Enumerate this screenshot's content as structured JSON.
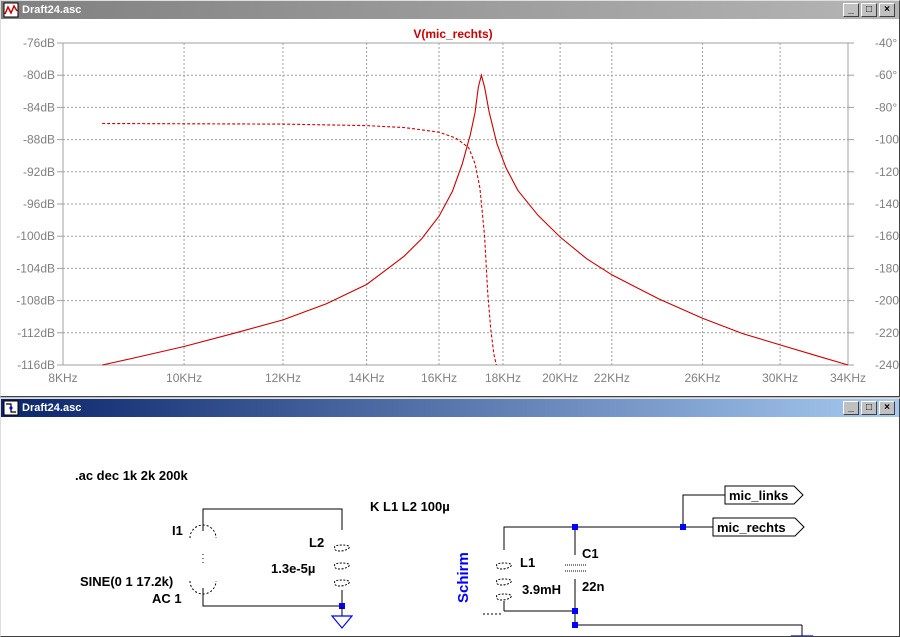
{
  "plot_window": {
    "title": "Draft24.asc",
    "trace_title": "V(mic_rechts)",
    "buttons": {
      "minimize": "_",
      "maximize": "□",
      "close": "×"
    }
  },
  "chart_data": {
    "type": "line",
    "title": "V(mic_rechts)",
    "x_scale": "log",
    "xlim": [
      8000,
      34000
    ],
    "x_ticks": [
      {
        "value": 8000,
        "label": "8KHz"
      },
      {
        "value": 10000,
        "label": "10KHz"
      },
      {
        "value": 12000,
        "label": "12KHz"
      },
      {
        "value": 14000,
        "label": "14KHz"
      },
      {
        "value": 16000,
        "label": "16KHz"
      },
      {
        "value": 18000,
        "label": "18KHz"
      },
      {
        "value": 20000,
        "label": "20KHz"
      },
      {
        "value": 22000,
        "label": "22KHz"
      },
      {
        "value": 26000,
        "label": "26KHz"
      },
      {
        "value": 30000,
        "label": "30KHz"
      },
      {
        "value": 34000,
        "label": "34KHz"
      }
    ],
    "left_axis": {
      "unit": "dB",
      "ylim": [
        -116,
        -76
      ],
      "ticks": [
        {
          "value": -76,
          "label": "-76dB"
        },
        {
          "value": -80,
          "label": "-80dB"
        },
        {
          "value": -84,
          "label": "-84dB"
        },
        {
          "value": -88,
          "label": "-88dB"
        },
        {
          "value": -92,
          "label": "-92dB"
        },
        {
          "value": -96,
          "label": "-96dB"
        },
        {
          "value": -100,
          "label": "-100dB"
        },
        {
          "value": -104,
          "label": "-104dB"
        },
        {
          "value": -108,
          "label": "-108dB"
        },
        {
          "value": -112,
          "label": "-112dB"
        },
        {
          "value": -116,
          "label": "-116dB"
        }
      ]
    },
    "right_axis": {
      "unit": "°",
      "ylim": [
        -240,
        -40
      ],
      "ticks": [
        {
          "value": -40,
          "label": "-40°"
        },
        {
          "value": -60,
          "label": "-60°"
        },
        {
          "value": -80,
          "label": "-80°"
        },
        {
          "value": -100,
          "label": "-100°"
        },
        {
          "value": -120,
          "label": "-120°"
        },
        {
          "value": -140,
          "label": "-140°"
        },
        {
          "value": -160,
          "label": "-160°"
        },
        {
          "value": -180,
          "label": "-180°"
        },
        {
          "value": -200,
          "label": "-200°"
        },
        {
          "value": -220,
          "label": "-220°"
        },
        {
          "value": -240,
          "label": "-240°"
        }
      ]
    },
    "grid": true,
    "series": [
      {
        "kind": "magnitude",
        "axis": "left",
        "style": "solid",
        "color": "#cc0000",
        "points": [
          [
            8600,
            -116
          ],
          [
            9200,
            -115.0
          ],
          [
            10000,
            -113.7
          ],
          [
            11000,
            -112.0
          ],
          [
            12000,
            -110.4
          ],
          [
            13000,
            -108.4
          ],
          [
            14000,
            -106.0
          ],
          [
            15000,
            -102.5
          ],
          [
            15500,
            -100.3
          ],
          [
            16000,
            -97.5
          ],
          [
            16400,
            -94.4
          ],
          [
            16700,
            -91.0
          ],
          [
            16950,
            -87.4
          ],
          [
            17100,
            -84.6
          ],
          [
            17200,
            -81.5
          ],
          [
            17300,
            -80.0
          ],
          [
            17400,
            -81.5
          ],
          [
            17550,
            -84.6
          ],
          [
            17800,
            -88.5
          ],
          [
            18100,
            -91.5
          ],
          [
            18500,
            -94.3
          ],
          [
            19200,
            -97.4
          ],
          [
            20000,
            -100.1
          ],
          [
            21000,
            -102.8
          ],
          [
            22000,
            -104.8
          ],
          [
            24000,
            -107.8
          ],
          [
            26000,
            -110.2
          ],
          [
            28000,
            -112.1
          ],
          [
            30000,
            -113.5
          ],
          [
            32000,
            -114.8
          ],
          [
            34000,
            -116.0
          ]
        ]
      },
      {
        "kind": "phase",
        "axis": "right",
        "style": "dashed",
        "color": "#cc0000",
        "points": [
          [
            8600,
            -90.0
          ],
          [
            12000,
            -90.4
          ],
          [
            14000,
            -91.3
          ],
          [
            15000,
            -92.5
          ],
          [
            16000,
            -95.4
          ],
          [
            16500,
            -99.0
          ],
          [
            16900,
            -105.0
          ],
          [
            17100,
            -115.0
          ],
          [
            17250,
            -130.0
          ],
          [
            17400,
            -160.0
          ],
          [
            17500,
            -195.0
          ],
          [
            17600,
            -218.0
          ],
          [
            17700,
            -233.0
          ],
          [
            17780,
            -240.0
          ]
        ]
      }
    ]
  },
  "schematic_window": {
    "title": "Draft24.asc",
    "buttons": {
      "minimize": "_",
      "maximize": "□",
      "close": "×"
    },
    "directive_ac": ".ac dec 1k 2k 200k",
    "directive_k": "K L1 L2 100µ",
    "source_name": "I1",
    "source_value": "SINE(0 1 17.2k)",
    "source_ac": "AC 1",
    "l2_name": "L2",
    "l2_value": "1.3e-5µ",
    "l1_name": "L1",
    "l1_value": "3.9mH",
    "c1_name": "C1",
    "c1_value": "22n",
    "net_schirm": "Schirm",
    "port_links": "mic_links",
    "port_rechts": "mic_rechts",
    "colors": {
      "wire": "#000000",
      "junction": "#0000ff",
      "netlabel": "#0000ff",
      "ground": "#0000ff",
      "trace": "#cc0000",
      "grid": "#a0a0a0"
    }
  }
}
